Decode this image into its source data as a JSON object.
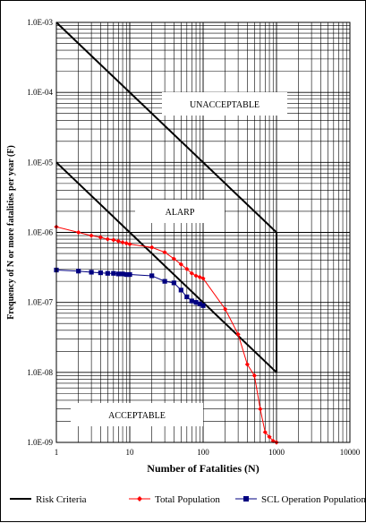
{
  "chart_data": {
    "type": "line",
    "x_scale": "log",
    "y_scale": "log",
    "xlim": [
      1,
      10000
    ],
    "ylim": [
      1e-09,
      0.001
    ],
    "xlabel": "Number of Fatalities (N)",
    "ylabel": "Frequency of N or more fatalities per year (F)",
    "x_tick_labels": [
      "1",
      "10",
      "100",
      "1000",
      "10000"
    ],
    "y_tick_labels": [
      "1.0E-03",
      "1.0E-04",
      "1.0E-05",
      "1.0E-06",
      "1.0E-07",
      "1.0E-08",
      "1.0E-09"
    ],
    "region_labels": {
      "unacceptable": "UNACCEPTABLE",
      "alarp": "ALARP",
      "acceptable": "ACCEPTABLE"
    },
    "grid": true,
    "legend_position": "bottom",
    "series": [
      {
        "name": "Risk Criteria",
        "color": "#000000",
        "marker": "none",
        "lines": [
          {
            "x": [
              1,
              1000,
              1000
            ],
            "y": [
              0.001,
              1e-06,
              1e-08
            ]
          },
          {
            "x": [
              1,
              1000
            ],
            "y": [
              1e-05,
              1e-08
            ]
          }
        ]
      },
      {
        "name": "Total Population",
        "color": "#ff0000",
        "marker": "diamond",
        "x": [
          1,
          2,
          3,
          4,
          5,
          6,
          7,
          8,
          9,
          10,
          20,
          30,
          40,
          50,
          60,
          70,
          80,
          90,
          100,
          200,
          300,
          400,
          500,
          600,
          700,
          800,
          900,
          1000
        ],
        "y": [
          1.2e-06,
          1e-06,
          9e-07,
          8.5e-07,
          8e-07,
          7.8e-07,
          7.5e-07,
          7.2e-07,
          7e-07,
          6.8e-07,
          6.1e-07,
          5.2e-07,
          4.2e-07,
          3.5e-07,
          3e-07,
          2.6e-07,
          2.4e-07,
          2.3e-07,
          2.2e-07,
          8e-08,
          3.5e-08,
          1.3e-08,
          9e-09,
          3e-09,
          1.4e-09,
          1.2e-09,
          1.05e-09,
          1e-09
        ]
      },
      {
        "name": "SCL Operation Population",
        "color": "#000080",
        "marker": "square",
        "x": [
          1,
          2,
          3,
          4,
          5,
          6,
          7,
          8,
          9,
          10,
          20,
          30,
          40,
          50,
          60,
          70,
          80,
          90,
          100
        ],
        "y": [
          2.9e-07,
          2.8e-07,
          2.7e-07,
          2.65e-07,
          2.6e-07,
          2.6e-07,
          2.55e-07,
          2.55e-07,
          2.5e-07,
          2.5e-07,
          2.4e-07,
          2e-07,
          1.9e-07,
          1.5e-07,
          1.2e-07,
          1.05e-07,
          1e-07,
          9.5e-08,
          9e-08
        ]
      }
    ]
  }
}
